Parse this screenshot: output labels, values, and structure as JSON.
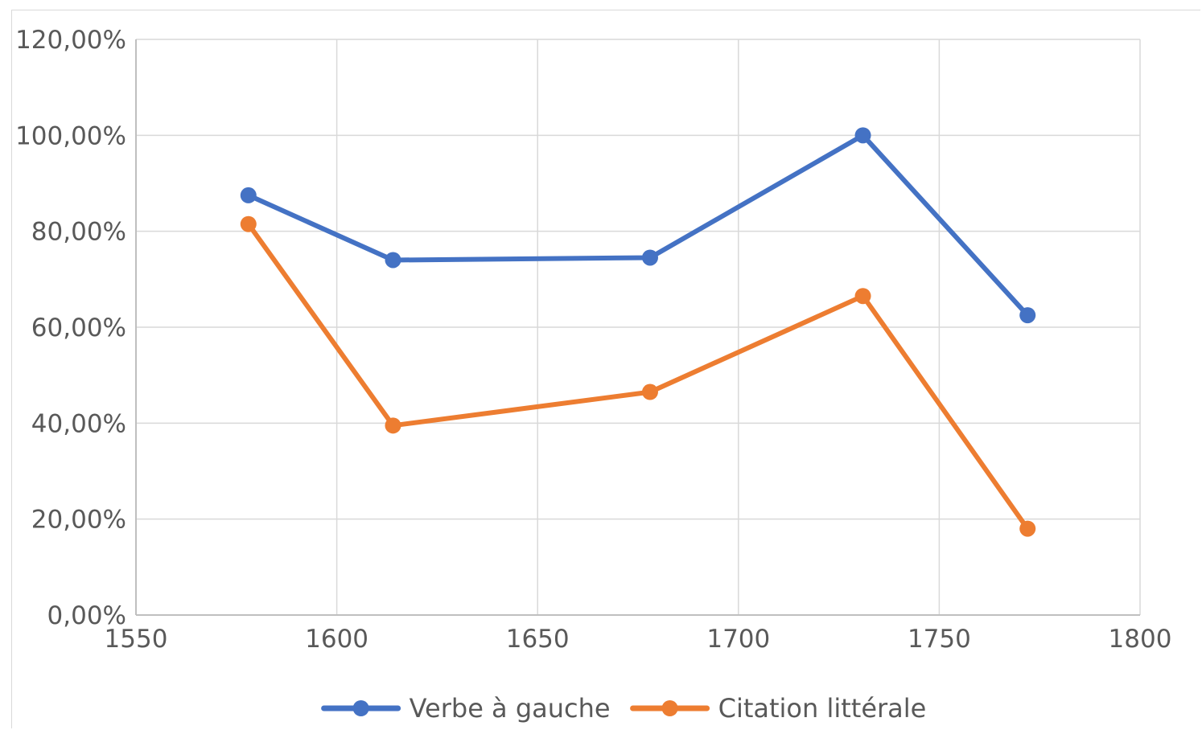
{
  "chart_data": {
    "type": "line",
    "x_axis": {
      "min": 1550,
      "max": 1800,
      "ticks": [
        1550,
        1600,
        1650,
        1700,
        1750,
        1800
      ],
      "tick_labels": [
        "1550",
        "1600",
        "1650",
        "1700",
        "1750",
        "1800"
      ]
    },
    "y_axis": {
      "min": 0,
      "max": 1.2,
      "ticks": [
        0,
        0.2,
        0.4,
        0.6,
        0.8,
        1.0,
        1.2
      ],
      "tick_labels": [
        "0,00%",
        "20,00%",
        "40,00%",
        "60,00%",
        "80,00%",
        "100,00%",
        "120,00%"
      ]
    },
    "grid": true,
    "legend_position": "bottom",
    "series": [
      {
        "name": "Verbe à gauche",
        "color": "#4472c4",
        "marker": "circle",
        "points": [
          {
            "x": 1578,
            "y": 0.875
          },
          {
            "x": 1614,
            "y": 0.74
          },
          {
            "x": 1678,
            "y": 0.745
          },
          {
            "x": 1731,
            "y": 1.0
          },
          {
            "x": 1772,
            "y": 0.625
          }
        ]
      },
      {
        "name": "Citation littérale",
        "color": "#ed7d31",
        "marker": "circle",
        "points": [
          {
            "x": 1578,
            "y": 0.815
          },
          {
            "x": 1614,
            "y": 0.395
          },
          {
            "x": 1678,
            "y": 0.465
          },
          {
            "x": 1731,
            "y": 0.665
          },
          {
            "x": 1772,
            "y": 0.18
          }
        ]
      }
    ]
  }
}
